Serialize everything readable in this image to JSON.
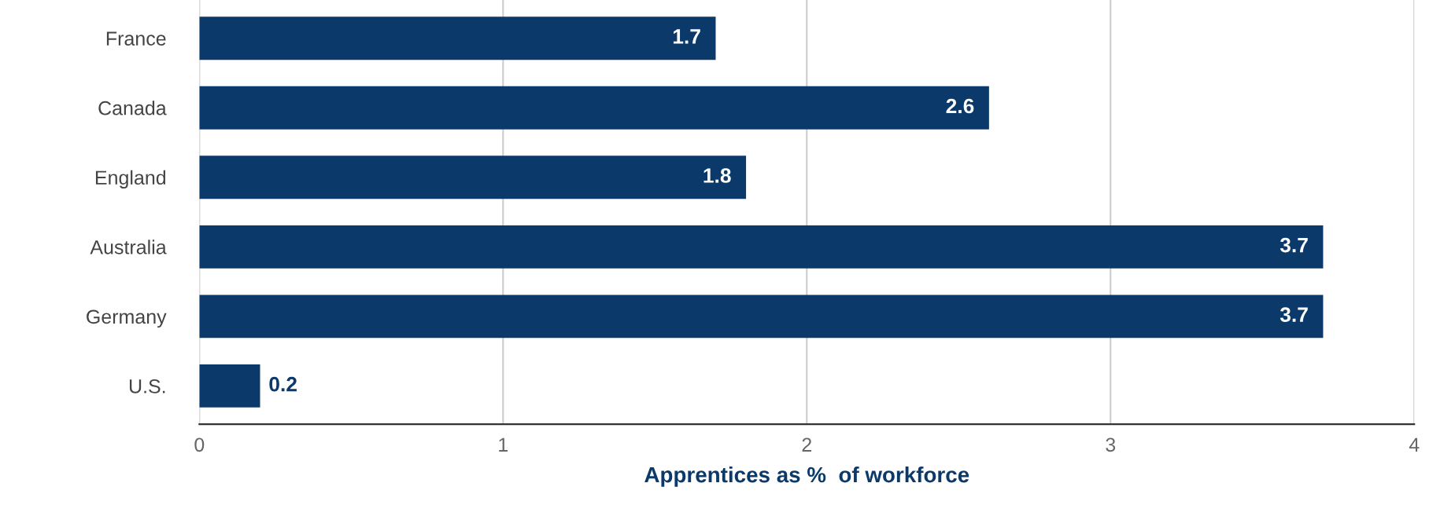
{
  "chart_data": {
    "type": "bar",
    "orientation": "horizontal",
    "xlabel": "Apprentices as %  of workforce",
    "categories": [
      "France",
      "Canada",
      "England",
      "Australia",
      "Germany",
      "U.S."
    ],
    "values": [
      1.7,
      2.6,
      1.8,
      3.7,
      3.7,
      0.2
    ],
    "color": "#0b3a6a",
    "xlim": [
      0,
      4
    ],
    "xticks": [
      0,
      1,
      2,
      3,
      4
    ],
    "grid": "x",
    "data_labels": true
  }
}
